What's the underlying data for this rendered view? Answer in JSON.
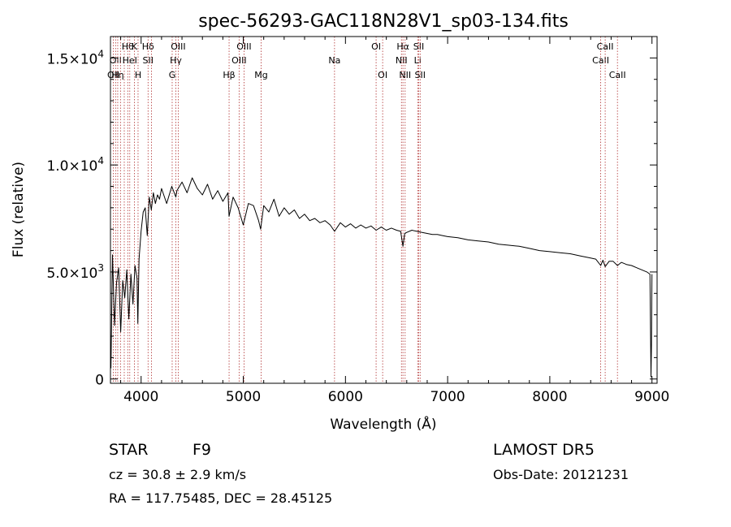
{
  "chart_data": {
    "type": "line",
    "title": "spec-56293-GAC118N28V1_sp03-134.fits",
    "xlabel": "Wavelength (Å)",
    "ylabel": "Flux (relative)",
    "xlim": [
      3700,
      9050
    ],
    "ylim": [
      -200,
      16000
    ],
    "x_ticks": [
      {
        "value": 4000,
        "label": "4000"
      },
      {
        "value": 5000,
        "label": "5000"
      },
      {
        "value": 6000,
        "label": "6000"
      },
      {
        "value": 7000,
        "label": "7000"
      },
      {
        "value": 8000,
        "label": "8000"
      },
      {
        "value": 9000,
        "label": "9000"
      }
    ],
    "y_ticks": [
      {
        "value": 0,
        "mant": "0",
        "exp": ""
      },
      {
        "value": 5000,
        "mant": "5.0×10",
        "exp": "3"
      },
      {
        "value": 10000,
        "mant": "1.0×10",
        "exp": "4"
      },
      {
        "value": 15000,
        "mant": "1.5×10",
        "exp": "4"
      }
    ],
    "series": [
      {
        "color": "#000000",
        "x": [
          3705,
          3720,
          3740,
          3760,
          3780,
          3800,
          3820,
          3840,
          3860,
          3880,
          3900,
          3920,
          3940,
          3960,
          3968,
          3980,
          4000,
          4020,
          4040,
          4060,
          4080,
          4100,
          4120,
          4140,
          4160,
          4180,
          4200,
          4250,
          4300,
          4340,
          4350,
          4400,
          4450,
          4500,
          4550,
          4600,
          4650,
          4700,
          4750,
          4800,
          4850,
          4861,
          4900,
          4950,
          5000,
          5050,
          5100,
          5150,
          5170,
          5200,
          5250,
          5300,
          5350,
          5400,
          5450,
          5500,
          5550,
          5600,
          5650,
          5700,
          5750,
          5800,
          5850,
          5893,
          5950,
          6000,
          6050,
          6100,
          6150,
          6200,
          6250,
          6300,
          6350,
          6400,
          6450,
          6500,
          6540,
          6563,
          6580,
          6600,
          6650,
          6700,
          6750,
          6800,
          6850,
          6900,
          6950,
          7000,
          7100,
          7200,
          7300,
          7400,
          7500,
          7600,
          7700,
          7800,
          7900,
          8000,
          8100,
          8200,
          8300,
          8400,
          8450,
          8498,
          8520,
          8542,
          8580,
          8620,
          8662,
          8700,
          8750,
          8800,
          8850,
          8900,
          8950,
          8980,
          8990,
          8995,
          9000
        ],
        "y": [
          500,
          5800,
          2500,
          4500,
          5200,
          2200,
          4600,
          3800,
          5100,
          2800,
          4900,
          3500,
          5300,
          4700,
          2600,
          5600,
          6900,
          7800,
          8000,
          6700,
          8500,
          7900,
          8700,
          8200,
          8600,
          8400,
          8900,
          8200,
          9000,
          8500,
          8800,
          9200,
          8700,
          9400,
          8900,
          8600,
          9100,
          8400,
          8800,
          8300,
          8700,
          7600,
          8500,
          8000,
          7200,
          8200,
          8100,
          7400,
          7000,
          8100,
          7800,
          8400,
          7600,
          8000,
          7700,
          7900,
          7500,
          7700,
          7400,
          7500,
          7300,
          7400,
          7200,
          6900,
          7300,
          7100,
          7250,
          7050,
          7200,
          7050,
          7150,
          6950,
          7100,
          6950,
          7050,
          6950,
          6900,
          6200,
          6800,
          6850,
          6950,
          6900,
          6850,
          6800,
          6750,
          6750,
          6700,
          6650,
          6600,
          6500,
          6450,
          6400,
          6300,
          6250,
          6200,
          6100,
          6000,
          5950,
          5900,
          5850,
          5750,
          5650,
          5600,
          5300,
          5550,
          5250,
          5500,
          5500,
          5300,
          5450,
          5350,
          5300,
          5200,
          5100,
          5000,
          4900,
          100,
          1600,
          4900
        ]
      }
    ],
    "lines": [
      {
        "x": 3728,
        "labels": [
          {
            "t": "OII",
            "row": 2
          }
        ]
      },
      {
        "x": 3750,
        "labels": [
          {
            "t": "OII",
            "row": 1
          }
        ]
      },
      {
        "x": 3771,
        "labels": [
          {
            "t": "Hη",
            "row": 2
          }
        ]
      },
      {
        "x": 3798,
        "labels": []
      },
      {
        "x": 3835,
        "labels": []
      },
      {
        "x": 3869,
        "labels": [
          {
            "t": "Hθ",
            "row": 0
          }
        ]
      },
      {
        "x": 3889,
        "labels": [
          {
            "t": "HeI",
            "row": 1
          }
        ]
      },
      {
        "x": 3934,
        "labels": [
          {
            "t": "K",
            "row": 0
          }
        ]
      },
      {
        "x": 3970,
        "labels": [
          {
            "t": "H",
            "row": 2
          }
        ]
      },
      {
        "x": 4068,
        "labels": [
          {
            "t": "Hδ",
            "row": 0
          },
          {
            "t": "SII",
            "row": 1
          }
        ]
      },
      {
        "x": 4102,
        "labels": []
      },
      {
        "x": 4304,
        "labels": [
          {
            "t": "G",
            "row": 2
          }
        ]
      },
      {
        "x": 4340,
        "labels": [
          {
            "t": "Hγ",
            "row": 1
          }
        ]
      },
      {
        "x": 4363,
        "labels": [
          {
            "t": "OIII",
            "row": 0
          }
        ]
      },
      {
        "x": 4861,
        "labels": [
          {
            "t": "Hβ",
            "row": 2
          }
        ]
      },
      {
        "x": 4959,
        "labels": [
          {
            "t": "OIII",
            "row": 1
          }
        ]
      },
      {
        "x": 5007,
        "labels": [
          {
            "t": "OIII",
            "row": 0
          }
        ]
      },
      {
        "x": 5175,
        "labels": [
          {
            "t": "Mg",
            "row": 2
          }
        ]
      },
      {
        "x": 5893,
        "labels": [
          {
            "t": "Na",
            "row": 1
          }
        ]
      },
      {
        "x": 6300,
        "labels": [
          {
            "t": "OI",
            "row": 0
          }
        ]
      },
      {
        "x": 6364,
        "labels": [
          {
            "t": "OI",
            "row": 2
          }
        ]
      },
      {
        "x": 6548,
        "labels": [
          {
            "t": "NII",
            "row": 1
          }
        ]
      },
      {
        "x": 6563,
        "labels": [
          {
            "t": "Hα",
            "row": 0
          }
        ]
      },
      {
        "x": 6584,
        "labels": [
          {
            "t": "NII",
            "row": 2
          }
        ]
      },
      {
        "x": 6707,
        "labels": [
          {
            "t": "Li",
            "row": 1
          }
        ]
      },
      {
        "x": 6717,
        "labels": [
          {
            "t": "SII",
            "row": 0
          }
        ]
      },
      {
        "x": 6731,
        "labels": [
          {
            "t": "SII",
            "row": 2
          }
        ]
      },
      {
        "x": 8498,
        "labels": [
          {
            "t": "CaII",
            "row": 1
          }
        ]
      },
      {
        "x": 8542,
        "labels": [
          {
            "t": "CaII",
            "row": 0
          }
        ]
      },
      {
        "x": 8662,
        "labels": [
          {
            "t": "CaII",
            "row": 2
          }
        ]
      }
    ]
  },
  "footer": {
    "object_type": "STAR",
    "subclass": "F9",
    "survey": "LAMOST DR5",
    "redshift": "cz = 30.8 ± 2.9 km/s",
    "obs_date": "Obs-Date: 20121231",
    "coords": "RA = 117.75485, DEC =  28.45125"
  },
  "colors": {
    "spectrum": "#000000",
    "line_marker": "#b03030",
    "background": "#ffffff"
  }
}
